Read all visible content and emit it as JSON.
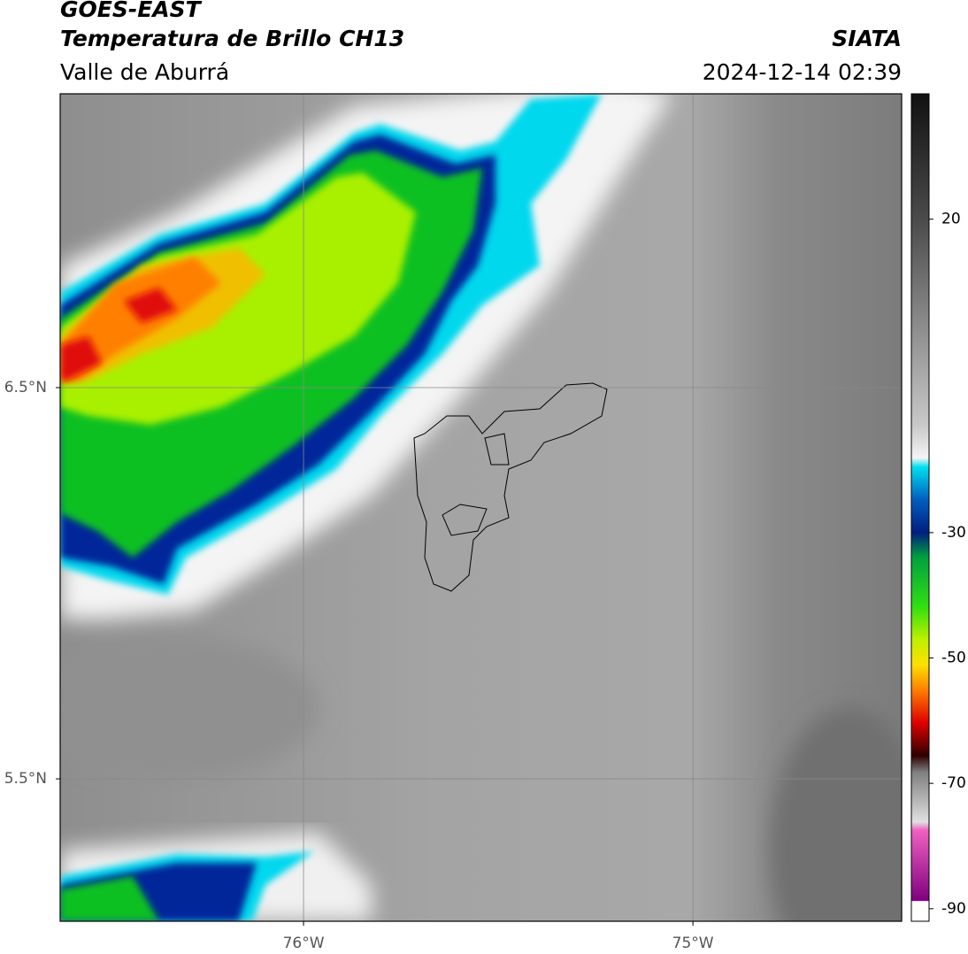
{
  "header": {
    "title": "GOES-EAST",
    "subtitle": "Temperatura de Brillo CH13",
    "region": "Valle de Aburrá",
    "source": "SIATA",
    "timestamp": "2024-12-14 02:39"
  },
  "map": {
    "xlim": [
      -76.625,
      -74.464
    ],
    "ylim": [
      5.136,
      7.251
    ],
    "xticks": [
      {
        "value": -76,
        "label": "76°W"
      },
      {
        "value": -75,
        "label": "75°W"
      }
    ],
    "yticks": [
      {
        "value": 6.5,
        "label": "6.5°N"
      },
      {
        "value": 5.5,
        "label": "5.5°N"
      }
    ],
    "grid": true
  },
  "colorbar": {
    "lim": [
      -92,
      40
    ],
    "ticks": [
      20,
      -30,
      -50,
      -70,
      -90
    ]
  }
}
